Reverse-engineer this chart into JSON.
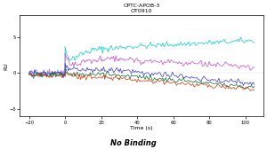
{
  "title_line1": "CPTC-APOB-3",
  "title_line2": "OT0910",
  "xlabel": "Time (s)",
  "ylabel": "RU",
  "no_binding_text": "No Binding",
  "background_color": "#ffffff",
  "xlim": [
    -25,
    110
  ],
  "ylim": [
    -6,
    8
  ],
  "yticks": [
    -5,
    0,
    5
  ],
  "xticks": [
    -20,
    0,
    20,
    40,
    60,
    80,
    100
  ],
  "colors": [
    "#00cccc",
    "#cc44cc",
    "#3333cc",
    "#006633",
    "#cc3300"
  ],
  "title_fontsize": 4.5,
  "axis_fontsize": 4.5,
  "tick_fontsize": 3.8,
  "no_binding_fontsize": 6
}
